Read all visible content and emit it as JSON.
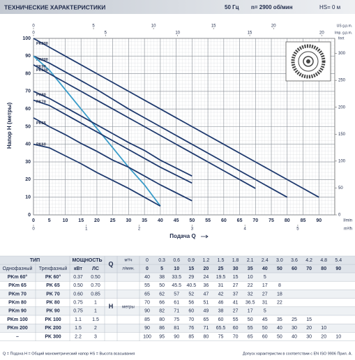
{
  "header": {
    "title": "ТЕХНИЧЕСКИЕ ХАРАКТЕРИСТИКИ",
    "freq": "50 Гц",
    "speed": "n= 2900 об/мин",
    "hs": "HS= 0 м"
  },
  "chart_data": {
    "type": "line",
    "y_label": "Напор H (метры)",
    "x_label": "Подача Q",
    "x_unit": "l/min",
    "xlim": [
      0,
      95
    ],
    "xticks": [
      0,
      5,
      10,
      15,
      20,
      25,
      30,
      35,
      40,
      45,
      50,
      55,
      60,
      65,
      70,
      75,
      80,
      85,
      90
    ],
    "ylim": [
      0,
      100
    ],
    "yticks": [
      0,
      10,
      20,
      30,
      40,
      50,
      60,
      70,
      80,
      90,
      100
    ],
    "grid": true,
    "x2_unit": "m³/h",
    "x2lim": [
      0,
      5.7
    ],
    "x2ticks": [
      0,
      1,
      2,
      3,
      4,
      5
    ],
    "x3_unit": "US g.p.m.",
    "x3lim": [
      0,
      25.1
    ],
    "x3ticks": [
      0,
      5,
      10,
      15,
      20
    ],
    "x4_unit": "Imp. g.p.m.",
    "x4lim": [
      0,
      20.9
    ],
    "x4ticks": [
      0,
      5,
      10,
      15,
      20
    ],
    "y2_unit": "feet",
    "y2lim": [
      0,
      328
    ],
    "y2ticks": [
      0,
      50,
      100,
      150,
      200,
      250,
      300
    ],
    "x": [
      0,
      5,
      10,
      15,
      20,
      25,
      30,
      35,
      40,
      50,
      60,
      70,
      80,
      90
    ],
    "series": [
      {
        "name": "PK300",
        "color": "#1f3a6e",
        "values": [
          100,
          95,
          90,
          85,
          80,
          75,
          70,
          65,
          60,
          50,
          40,
          30,
          20,
          10
        ]
      },
      {
        "name": "PK200",
        "color": "#1f3a6e",
        "values": [
          90,
          86,
          81,
          76,
          71,
          65.5,
          60,
          55,
          50,
          40,
          30,
          20,
          10,
          null
        ]
      },
      {
        "name": "PK90",
        "color": "#3a9cc9",
        "values": [
          90,
          82,
          71,
          60,
          49,
          38,
          27,
          17,
          5,
          null,
          null,
          null,
          null,
          null
        ]
      },
      {
        "name": "PK100",
        "color": "#1f3a6e",
        "values": [
          85,
          80,
          75,
          70,
          65,
          60,
          55,
          50,
          45,
          35,
          25,
          15,
          null,
          null
        ]
      },
      {
        "name": "PK80",
        "color": "#1f3a6e",
        "values": [
          70,
          66,
          61,
          56,
          51,
          46,
          41,
          36.5,
          31,
          22,
          null,
          null,
          null,
          null
        ]
      },
      {
        "name": "PK70",
        "color": "#1f3a6e",
        "values": [
          65,
          62,
          57,
          52,
          47,
          42,
          37,
          32,
          27,
          18,
          null,
          null,
          null,
          null
        ]
      },
      {
        "name": "PK65",
        "color": "#1f3a6e",
        "values": [
          55,
          50,
          45.5,
          40.5,
          36,
          31,
          27,
          22,
          17,
          8,
          null,
          null,
          null,
          null
        ]
      },
      {
        "name": "PK60",
        "color": "#1f3a6e",
        "values": [
          40,
          38,
          33.5,
          29,
          24,
          19.5,
          15,
          10,
          5,
          null,
          null,
          null,
          null,
          null
        ]
      }
    ]
  },
  "table": {
    "head": {
      "type": "ТИП",
      "power": "МОЩНОСТЬ",
      "single": "Однофазный",
      "three": "Трехфазный",
      "kw": "кВт",
      "hp": "ЛС",
      "q": "Q",
      "m3h": "м³/ч",
      "lmin": "л/мин.",
      "h": "H",
      "meters": "метры"
    },
    "flow_m3h": [
      "0",
      "0.3",
      "0.6",
      "0.9",
      "1.2",
      "1.5",
      "1.8",
      "2.1",
      "2.4",
      "3.0",
      "3.6",
      "4.2",
      "4.8",
      "5.4"
    ],
    "flow_lmin": [
      "0",
      "5",
      "10",
      "15",
      "20",
      "25",
      "30",
      "35",
      "40",
      "50",
      "60",
      "70",
      "80",
      "90"
    ],
    "rows": [
      [
        "PKm 60°",
        "PK 60°",
        "0.37",
        "0.50",
        "40",
        "38",
        "33.5",
        "29",
        "24",
        "19.5",
        "15",
        "10",
        "5"
      ],
      [
        "PKm 65",
        "PK 65",
        "0.50",
        "0.70",
        "55",
        "50",
        "45.5",
        "40.5",
        "36",
        "31",
        "27",
        "22",
        "17",
        "8"
      ],
      [
        "PKm 70",
        "PK 70",
        "0.60",
        "0.85",
        "65",
        "62",
        "57",
        "52",
        "47",
        "42",
        "37",
        "32",
        "27",
        "18"
      ],
      [
        "PKm 80",
        "PK 80",
        "0.75",
        "1",
        "70",
        "66",
        "61",
        "56",
        "51",
        "46",
        "41",
        "36.5",
        "31",
        "22"
      ],
      [
        "PKm 90",
        "PK 90",
        "0.75",
        "1",
        "90",
        "82",
        "71",
        "60",
        "49",
        "38",
        "27",
        "17",
        "5"
      ],
      [
        "PKm 100",
        "PK 100",
        "1.1",
        "1.5",
        "85",
        "80",
        "75",
        "70",
        "65",
        "60",
        "55",
        "50",
        "45",
        "35",
        "25",
        "15"
      ],
      [
        "PKm 200",
        "PK 200",
        "1.5",
        "2",
        "90",
        "86",
        "81",
        "76",
        "71",
        "65.5",
        "60",
        "55",
        "50",
        "40",
        "30",
        "20",
        "10"
      ],
      [
        "–",
        "PK 300",
        "2.2",
        "3",
        "100",
        "95",
        "90",
        "85",
        "80",
        "75",
        "70",
        "65",
        "60",
        "50",
        "40",
        "30",
        "20",
        "10"
      ]
    ]
  },
  "footer": {
    "legend": "Q = Подача   H = Общий манометрический напор   HS = Высота всасывания",
    "tolerance": "Допуск характеристик в соответствии с EN ISO 9906 Прил. A."
  }
}
